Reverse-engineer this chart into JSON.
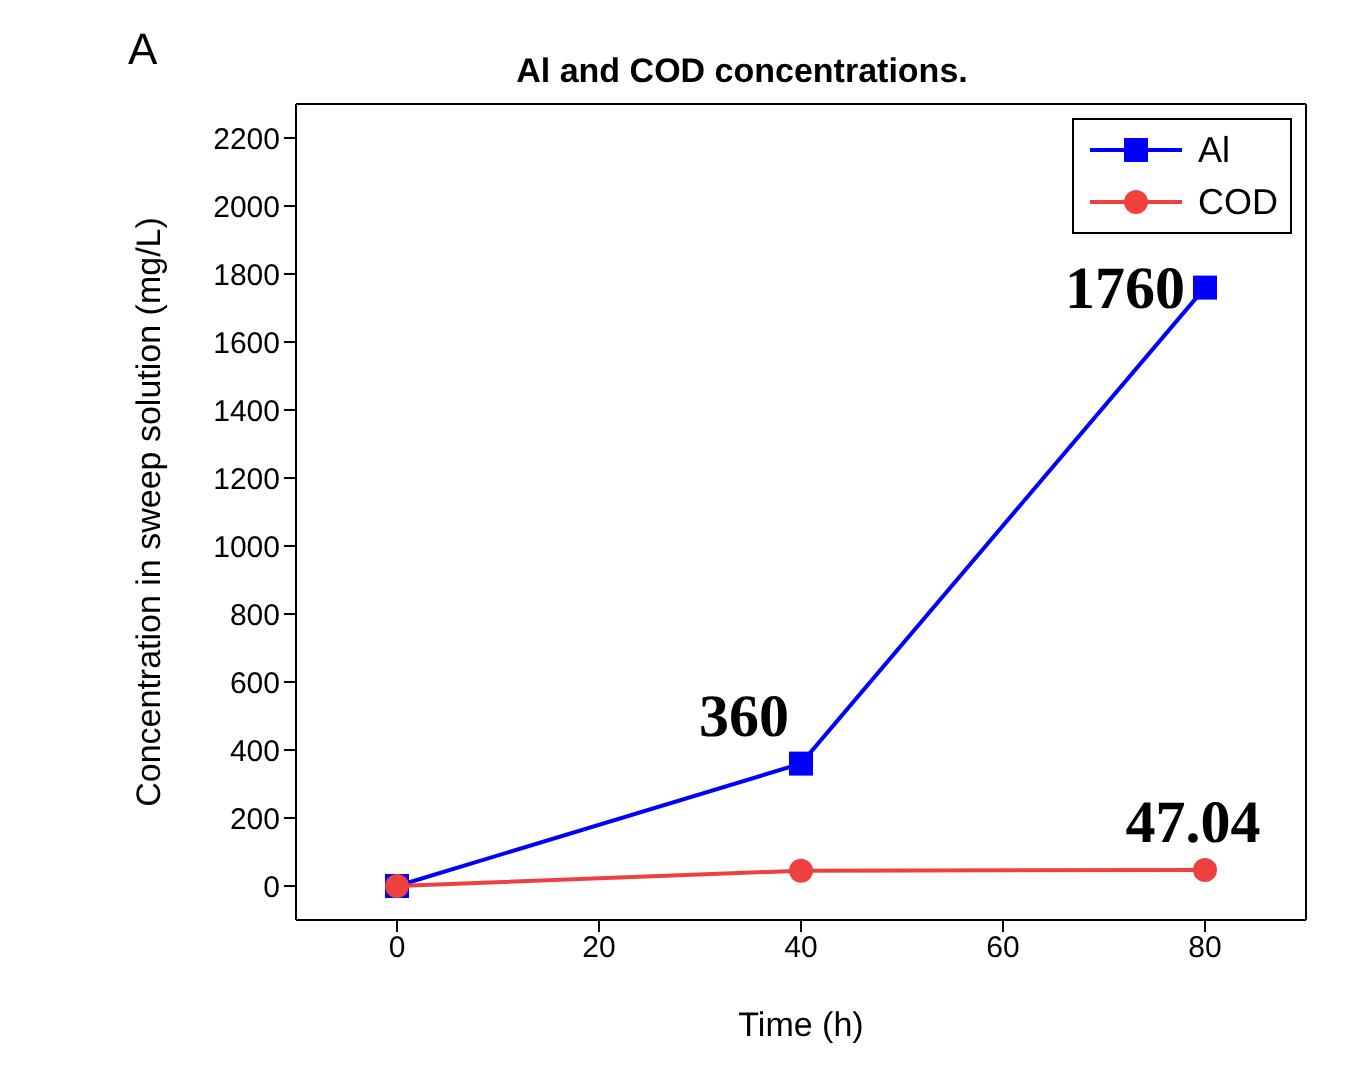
{
  "chart_data": {
    "type": "line",
    "title": "Al and COD concentrations.",
    "annotations": [
      "A"
    ],
    "xlabel": "Time (h)",
    "ylabel": "Concentration in sweep solution (mg/L)",
    "x": [
      0,
      40,
      80
    ],
    "series": [
      {
        "name": "Al",
        "color": "#0000ff",
        "marker": "square",
        "values": [
          0,
          360,
          1760
        ],
        "value_labels": [
          null,
          "360",
          "1760"
        ]
      },
      {
        "name": "COD",
        "color": "#ef4040",
        "marker": "circle",
        "values": [
          0,
          45,
          47.04
        ],
        "value_labels": [
          null,
          null,
          "47.04"
        ]
      }
    ],
    "xlim": [
      -10,
      90
    ],
    "xticks": [
      0,
      20,
      40,
      60,
      80
    ],
    "ylim": [
      -100,
      2300
    ],
    "yticks": [
      0,
      200,
      400,
      600,
      800,
      1000,
      1200,
      1400,
      1600,
      1800,
      2000,
      2200
    ],
    "grid": false,
    "legend": "top right"
  }
}
